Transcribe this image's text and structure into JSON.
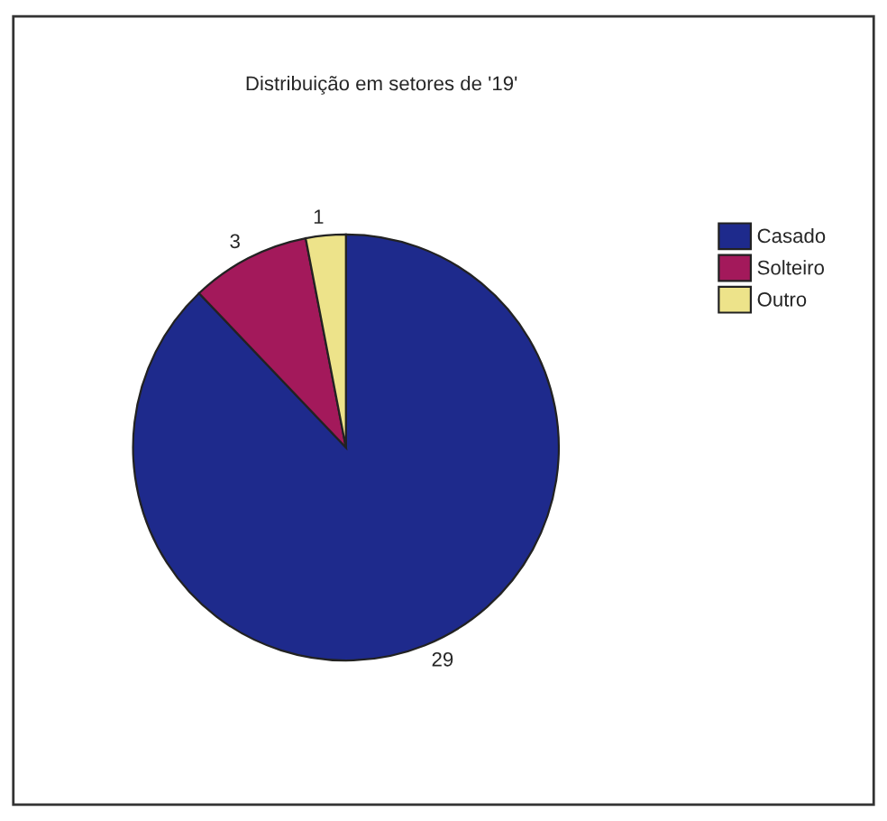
{
  "chart_data": {
    "type": "pie",
    "title": "Distribuição em setores de '19'",
    "categories": [
      "Casado",
      "Solteiro",
      "Outro"
    ],
    "values": [
      29,
      3,
      1
    ],
    "colors": [
      "#1e2a8c",
      "#a3195b",
      "#ede38a"
    ],
    "data_labels": true,
    "legend": "top right"
  }
}
